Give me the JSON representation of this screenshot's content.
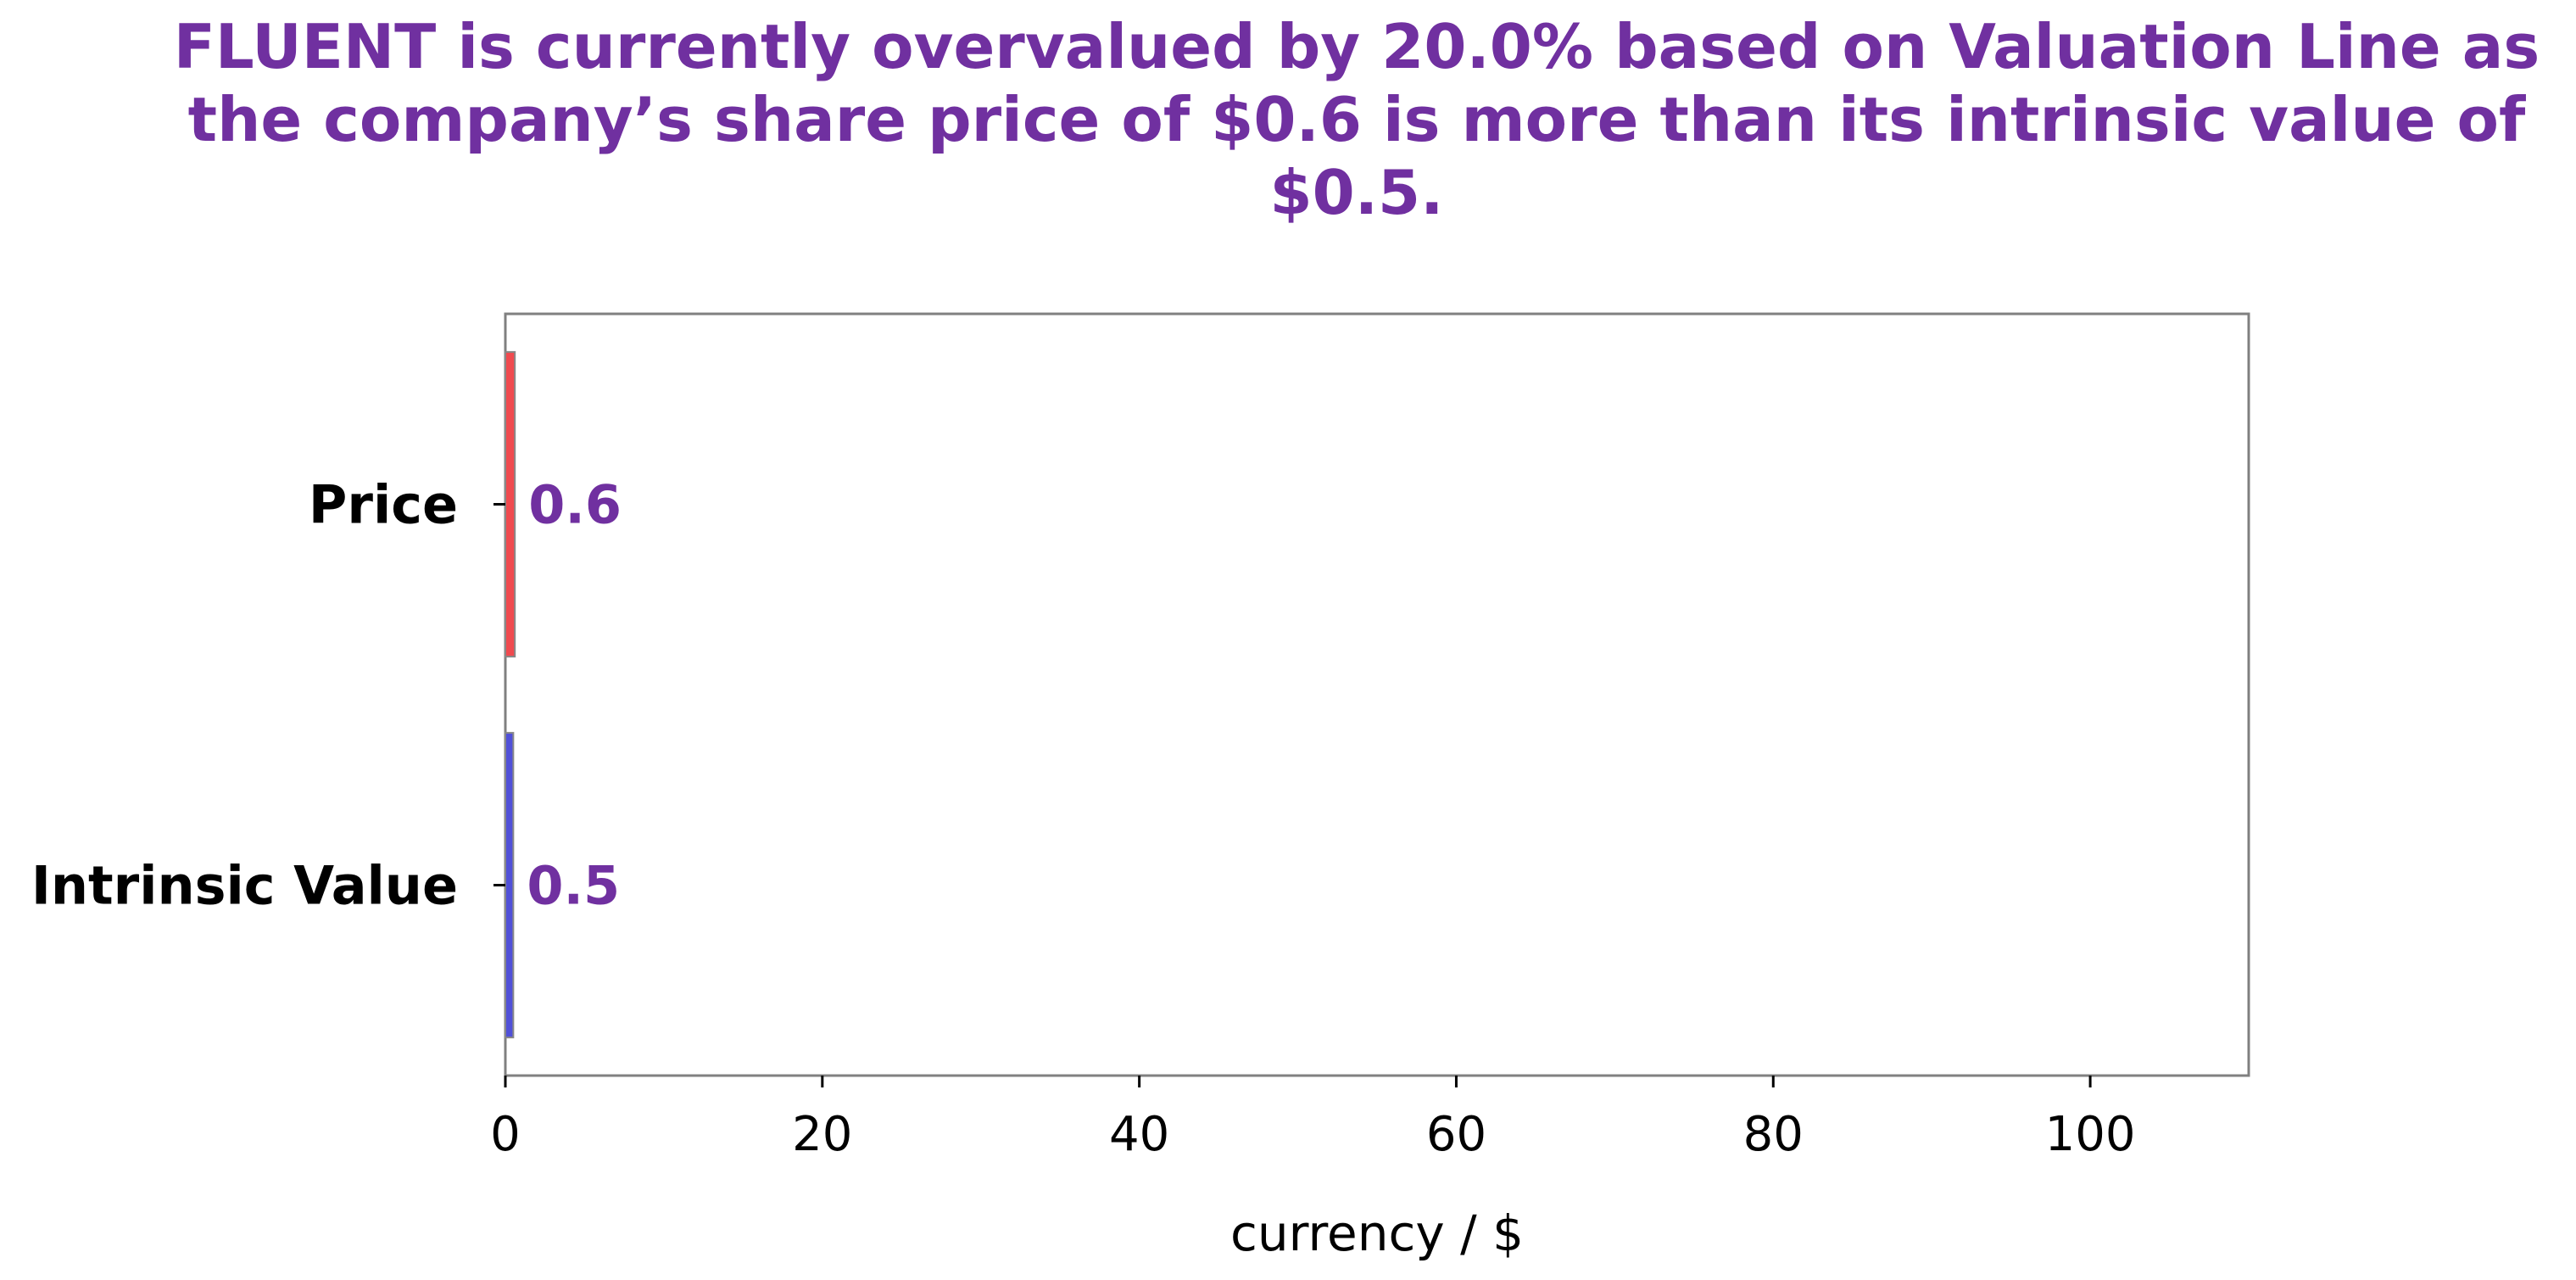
{
  "chart_data": {
    "type": "bar",
    "orientation": "horizontal",
    "title": "FLUENT is currently overvalued by 20.0% based on Valuation Line as the company’s share price of $0.6 is more than its intrinsic value of $0.5.",
    "categories": [
      "Price",
      "Intrinsic Value"
    ],
    "values": [
      0.6,
      0.5
    ],
    "data_labels": [
      "0.6",
      "0.5"
    ],
    "bar_colors": [
      "#f04a4f",
      "#5050d8"
    ],
    "xlabel": "currency / $",
    "ylabel": "",
    "xlim": [
      0,
      110
    ],
    "xticks": [
      0,
      20,
      40,
      60,
      80,
      100
    ],
    "title_color": "#7030a0",
    "label_color": "#7030a0",
    "grid": false,
    "legend": false
  }
}
